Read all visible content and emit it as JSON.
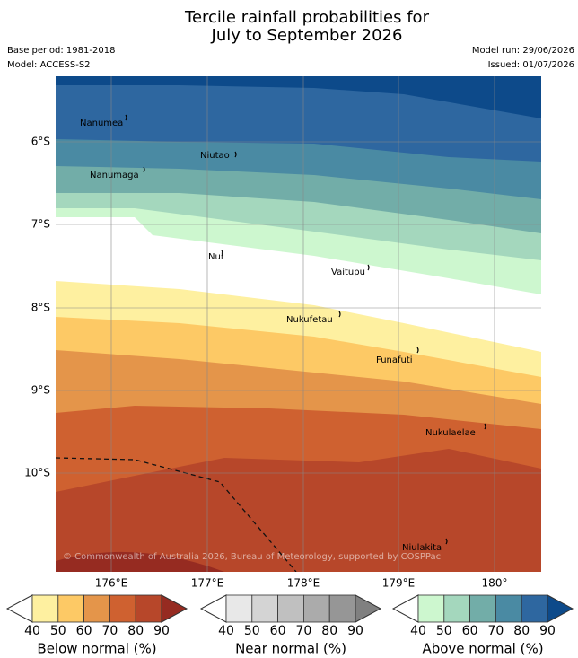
{
  "header": {
    "title_lines": [
      "Tercile rainfall probabilities for",
      "July to September 2026"
    ],
    "base_period": "Base period: 1981-2018",
    "model": "Model: ACCESS-S2",
    "model_run": "Model run: 29/06/2026",
    "issued": "Issued: 01/07/2026"
  },
  "map": {
    "lat_labels": [
      "6°S",
      "7°S",
      "8°S",
      "9°S",
      "10°S"
    ],
    "lon_labels": [
      "176°E",
      "177°E",
      "178°E",
      "179°E",
      "180°"
    ],
    "islands": [
      "Nanumea",
      "Niutao",
      "Nanumaga",
      "Nui",
      "Vaitupu",
      "Nukufetau",
      "Funafuti",
      "Nukulaelae",
      "Niulakita"
    ],
    "copyright": "© Commonwealth of Australia 2026, Bureau of Meteorology, supported by COSPPac"
  },
  "legend": [
    {
      "caption": "Below normal (%)",
      "ticks": [
        40,
        50,
        60,
        70,
        80,
        90
      ],
      "colors": [
        "#fef0a0",
        "#fdc965",
        "#e4954a",
        "#cf6130",
        "#b7472a",
        "#962b21"
      ]
    },
    {
      "caption": "Near normal (%)",
      "ticks": [
        40,
        50,
        60,
        70,
        80,
        90
      ],
      "colors": [
        "#e8e8e8",
        "#d4d4d4",
        "#c0c0c0",
        "#ababab",
        "#969696",
        "#808080"
      ]
    },
    {
      "caption": "Above normal (%)",
      "ticks": [
        40,
        50,
        60,
        70,
        80,
        90
      ],
      "colors": [
        "#cdf7cf",
        "#a4d7bd",
        "#72ada8",
        "#4a8aa3",
        "#2e67a0",
        "#0d4a8a"
      ]
    }
  ]
}
